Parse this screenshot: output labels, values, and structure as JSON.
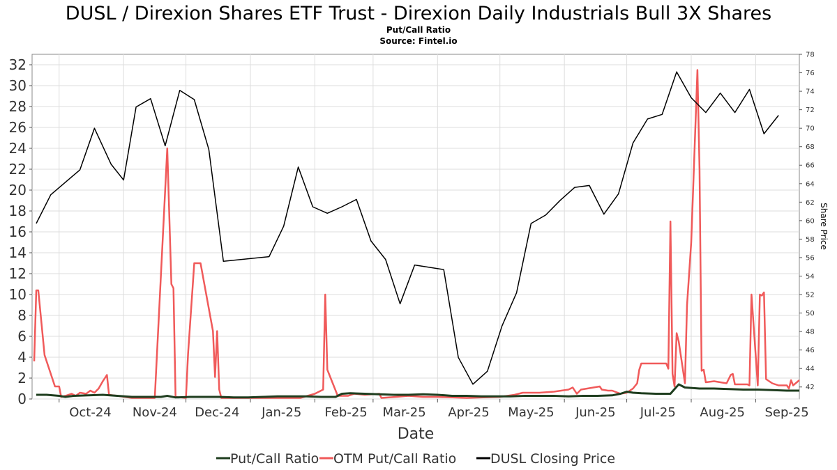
{
  "chart_data": {
    "type": "line",
    "title": "DUSL / Direxion Shares ETF Trust - Direxion Daily Industrials Bull 3X Shares",
    "subtitle_lines": [
      "Put/Call Ratio",
      "Source: Fintel.io"
    ],
    "xlabel": "Date",
    "ylabel_left": "",
    "ylabel_right": "Share Price",
    "x_ticks": [
      "Oct-24",
      "Nov-24",
      "Dec-24",
      "Jan-25",
      "Feb-25",
      "Mar-25",
      "Apr-25",
      "May-25",
      "Jun-25",
      "Jul-25",
      "Aug-25",
      "Sep-25"
    ],
    "x_range": [
      "2024-09-18",
      "2025-09-22"
    ],
    "ylim_left": [
      0,
      33
    ],
    "left_ticks": [
      "0",
      "2",
      "4",
      "6",
      "8",
      "10",
      "12",
      "14",
      "16",
      "18",
      "20",
      "22",
      "24",
      "26",
      "28",
      "30",
      "32"
    ],
    "ylim_right": [
      40.7,
      78
    ],
    "right_ticks": [
      "42",
      "44",
      "46",
      "48",
      "50",
      "52",
      "54",
      "56",
      "58",
      "60",
      "62",
      "64",
      "66",
      "68",
      "70",
      "72",
      "74",
      "76",
      "78"
    ],
    "grid": true,
    "legend_position": "bottom",
    "series": [
      {
        "name": "Put/Call Ratio",
        "axis": "left",
        "color": "#1e3d1e",
        "points": [
          [
            "2024-09-20",
            0.4
          ],
          [
            "2024-09-25",
            0.4
          ],
          [
            "2024-10-01",
            0.3
          ],
          [
            "2024-10-04",
            0.2
          ],
          [
            "2024-10-08",
            0.3
          ],
          [
            "2024-10-15",
            0.35
          ],
          [
            "2024-10-22",
            0.4
          ],
          [
            "2024-10-29",
            0.3
          ],
          [
            "2024-11-05",
            0.2
          ],
          [
            "2024-11-12",
            0.2
          ],
          [
            "2024-11-19",
            0.2
          ],
          [
            "2024-11-22",
            0.3
          ],
          [
            "2024-11-26",
            0.15
          ],
          [
            "2024-12-03",
            0.2
          ],
          [
            "2024-12-10",
            0.2
          ],
          [
            "2024-12-17",
            0.2
          ],
          [
            "2024-12-24",
            0.15
          ],
          [
            "2024-12-31",
            0.15
          ],
          [
            "2025-01-07",
            0.2
          ],
          [
            "2025-01-14",
            0.25
          ],
          [
            "2025-01-21",
            0.25
          ],
          [
            "2025-01-28",
            0.25
          ],
          [
            "2025-02-04",
            0.2
          ],
          [
            "2025-02-11",
            0.2
          ],
          [
            "2025-02-14",
            0.5
          ],
          [
            "2025-02-18",
            0.55
          ],
          [
            "2025-02-25",
            0.5
          ],
          [
            "2025-03-04",
            0.45
          ],
          [
            "2025-03-11",
            0.4
          ],
          [
            "2025-03-18",
            0.4
          ],
          [
            "2025-03-25",
            0.45
          ],
          [
            "2025-04-01",
            0.4
          ],
          [
            "2025-04-08",
            0.3
          ],
          [
            "2025-04-15",
            0.3
          ],
          [
            "2025-04-22",
            0.25
          ],
          [
            "2025-04-29",
            0.25
          ],
          [
            "2025-05-06",
            0.25
          ],
          [
            "2025-05-13",
            0.3
          ],
          [
            "2025-05-20",
            0.3
          ],
          [
            "2025-05-27",
            0.3
          ],
          [
            "2025-06-03",
            0.25
          ],
          [
            "2025-06-10",
            0.3
          ],
          [
            "2025-06-17",
            0.3
          ],
          [
            "2025-06-24",
            0.35
          ],
          [
            "2025-06-28",
            0.5
          ],
          [
            "2025-07-01",
            0.7
          ],
          [
            "2025-07-04",
            0.6
          ],
          [
            "2025-07-08",
            0.55
          ],
          [
            "2025-07-15",
            0.5
          ],
          [
            "2025-07-22",
            0.5
          ],
          [
            "2025-07-26",
            1.4
          ],
          [
            "2025-07-29",
            1.1
          ],
          [
            "2025-08-05",
            1.0
          ],
          [
            "2025-08-12",
            1.0
          ],
          [
            "2025-08-19",
            0.95
          ],
          [
            "2025-08-26",
            0.9
          ],
          [
            "2025-09-02",
            0.9
          ],
          [
            "2025-09-09",
            0.85
          ],
          [
            "2025-09-16",
            0.8
          ],
          [
            "2025-09-22",
            0.8
          ]
        ]
      },
      {
        "name": "OTM Put/Call Ratio",
        "axis": "left",
        "color": "#f05a5a",
        "points": [
          [
            "2024-09-19",
            3.6
          ],
          [
            "2024-09-20",
            10.4
          ],
          [
            "2024-09-21",
            10.4
          ],
          [
            "2024-09-24",
            4.2
          ],
          [
            "2024-09-29",
            1.2
          ],
          [
            "2024-10-01",
            1.2
          ],
          [
            "2024-10-02",
            0.2
          ],
          [
            "2024-10-04",
            0.3
          ],
          [
            "2024-10-07",
            0.5
          ],
          [
            "2024-10-09",
            0.3
          ],
          [
            "2024-10-11",
            0.6
          ],
          [
            "2024-10-14",
            0.5
          ],
          [
            "2024-10-16",
            0.8
          ],
          [
            "2024-10-18",
            0.6
          ],
          [
            "2024-10-20",
            1.0
          ],
          [
            "2024-10-22",
            1.7
          ],
          [
            "2024-10-24",
            2.3
          ],
          [
            "2024-10-25",
            0.4
          ],
          [
            "2024-10-29",
            0.3
          ],
          [
            "2024-11-05",
            0.1
          ],
          [
            "2024-11-12",
            0.1
          ],
          [
            "2024-11-16",
            0.1
          ],
          [
            "2024-11-22",
            24.0
          ],
          [
            "2024-11-24",
            11.0
          ],
          [
            "2024-11-25",
            10.6
          ],
          [
            "2024-11-26",
            0.2
          ],
          [
            "2024-12-01",
            0.1
          ],
          [
            "2024-12-02",
            4.3
          ],
          [
            "2024-12-05",
            13.0
          ],
          [
            "2024-12-08",
            13.0
          ],
          [
            "2024-12-14",
            6.5
          ],
          [
            "2024-12-15",
            2.1
          ],
          [
            "2024-12-16",
            6.5
          ],
          [
            "2024-12-17",
            0.9
          ],
          [
            "2024-12-18",
            0.1
          ],
          [
            "2025-01-05",
            0.1
          ],
          [
            "2025-01-25",
            0.1
          ],
          [
            "2025-02-01",
            0.5
          ],
          [
            "2025-02-05",
            0.9
          ],
          [
            "2025-02-06",
            10.0
          ],
          [
            "2025-02-07",
            2.8
          ],
          [
            "2025-02-12",
            0.3
          ],
          [
            "2025-02-17",
            0.3
          ],
          [
            "2025-02-20",
            0.5
          ],
          [
            "2025-02-25",
            0.4
          ],
          [
            "2025-03-04",
            0.5
          ],
          [
            "2025-03-05",
            0.1
          ],
          [
            "2025-03-12",
            0.2
          ],
          [
            "2025-03-18",
            0.3
          ],
          [
            "2025-03-25",
            0.2
          ],
          [
            "2025-04-01",
            0.2
          ],
          [
            "2025-04-15",
            0.1
          ],
          [
            "2025-05-01",
            0.2
          ],
          [
            "2025-05-08",
            0.4
          ],
          [
            "2025-05-12",
            0.6
          ],
          [
            "2025-05-20",
            0.6
          ],
          [
            "2025-05-27",
            0.7
          ],
          [
            "2025-06-03",
            0.9
          ],
          [
            "2025-06-05",
            1.1
          ],
          [
            "2025-06-07",
            0.5
          ],
          [
            "2025-06-09",
            0.9
          ],
          [
            "2025-06-12",
            1.0
          ],
          [
            "2025-06-15",
            1.1
          ],
          [
            "2025-06-18",
            1.2
          ],
          [
            "2025-06-19",
            0.9
          ],
          [
            "2025-06-22",
            0.8
          ],
          [
            "2025-06-24",
            0.8
          ],
          [
            "2025-06-28",
            0.5
          ],
          [
            "2025-07-01",
            0.6
          ],
          [
            "2025-07-04",
            1.0
          ],
          [
            "2025-07-06",
            1.5
          ],
          [
            "2025-07-07",
            2.8
          ],
          [
            "2025-07-08",
            3.4
          ],
          [
            "2025-07-12",
            3.4
          ],
          [
            "2025-07-20",
            3.4
          ],
          [
            "2025-07-21",
            2.9
          ],
          [
            "2025-07-22",
            17.0
          ],
          [
            "2025-07-23",
            2.4
          ],
          [
            "2025-07-24",
            1.2
          ],
          [
            "2025-07-25",
            6.3
          ],
          [
            "2025-07-26",
            5.5
          ],
          [
            "2025-07-29",
            1.5
          ],
          [
            "2025-07-30",
            9.0
          ],
          [
            "2025-08-01",
            15.0
          ],
          [
            "2025-08-04",
            31.5
          ],
          [
            "2025-08-05",
            22.0
          ],
          [
            "2025-08-06",
            2.7
          ],
          [
            "2025-08-07",
            2.8
          ],
          [
            "2025-08-08",
            1.6
          ],
          [
            "2025-08-12",
            1.7
          ],
          [
            "2025-08-15",
            1.6
          ],
          [
            "2025-08-18",
            1.5
          ],
          [
            "2025-08-20",
            2.3
          ],
          [
            "2025-08-21",
            2.4
          ],
          [
            "2025-08-22",
            1.4
          ],
          [
            "2025-08-25",
            1.4
          ],
          [
            "2025-08-28",
            1.4
          ],
          [
            "2025-08-29",
            1.3
          ],
          [
            "2025-08-30",
            10.0
          ],
          [
            "2025-09-02",
            1.3
          ],
          [
            "2025-09-03",
            10.0
          ],
          [
            "2025-09-04",
            9.9
          ],
          [
            "2025-09-05",
            10.2
          ],
          [
            "2025-09-06",
            1.9
          ],
          [
            "2025-09-09",
            1.5
          ],
          [
            "2025-09-12",
            1.3
          ],
          [
            "2025-09-16",
            1.3
          ],
          [
            "2025-09-17",
            1.0
          ],
          [
            "2025-09-18",
            1.8
          ],
          [
            "2025-09-19",
            1.3
          ],
          [
            "2025-09-22",
            1.8
          ]
        ]
      },
      {
        "name": "DUSL Closing Price",
        "axis": "right",
        "color": "#000000",
        "points": [
          [
            "2024-09-20",
            59.7
          ],
          [
            "2024-09-27",
            62.8
          ],
          [
            "2024-10-11",
            65.5
          ],
          [
            "2024-10-18",
            70.0
          ],
          [
            "2024-10-26",
            66.1
          ],
          [
            "2024-11-01",
            64.4
          ],
          [
            "2024-11-07",
            72.3
          ],
          [
            "2024-11-14",
            73.2
          ],
          [
            "2024-11-21",
            68.1
          ],
          [
            "2024-11-28",
            74.1
          ],
          [
            "2024-12-05",
            73.1
          ],
          [
            "2024-12-12",
            67.7
          ],
          [
            "2024-12-19",
            55.6
          ],
          [
            "2025-01-10",
            56.1
          ],
          [
            "2025-01-17",
            59.4
          ],
          [
            "2025-01-24",
            65.8
          ],
          [
            "2025-01-31",
            61.5
          ],
          [
            "2025-02-07",
            60.8
          ],
          [
            "2025-02-14",
            61.5
          ],
          [
            "2025-02-21",
            62.3
          ],
          [
            "2025-02-28",
            57.8
          ],
          [
            "2025-03-07",
            55.8
          ],
          [
            "2025-03-14",
            51.0
          ],
          [
            "2025-03-21",
            55.2
          ],
          [
            "2025-04-04",
            54.7
          ],
          [
            "2025-04-11",
            45.2
          ],
          [
            "2025-04-18",
            42.3
          ],
          [
            "2025-04-25",
            43.7
          ],
          [
            "2025-05-02",
            48.6
          ],
          [
            "2025-05-09",
            52.2
          ],
          [
            "2025-05-16",
            59.7
          ],
          [
            "2025-05-23",
            60.6
          ],
          [
            "2025-05-30",
            62.2
          ],
          [
            "2025-06-06",
            63.6
          ],
          [
            "2025-06-13",
            63.8
          ],
          [
            "2025-06-20",
            60.7
          ],
          [
            "2025-06-27",
            62.9
          ],
          [
            "2025-07-04",
            68.4
          ],
          [
            "2025-07-11",
            71.0
          ],
          [
            "2025-07-18",
            71.5
          ],
          [
            "2025-07-25",
            76.1
          ],
          [
            "2025-08-01",
            73.3
          ],
          [
            "2025-08-08",
            71.7
          ],
          [
            "2025-08-15",
            73.8
          ],
          [
            "2025-08-22",
            71.7
          ],
          [
            "2025-08-29",
            74.2
          ],
          [
            "2025-09-05",
            69.4
          ],
          [
            "2025-09-12",
            71.4
          ]
        ]
      }
    ]
  }
}
